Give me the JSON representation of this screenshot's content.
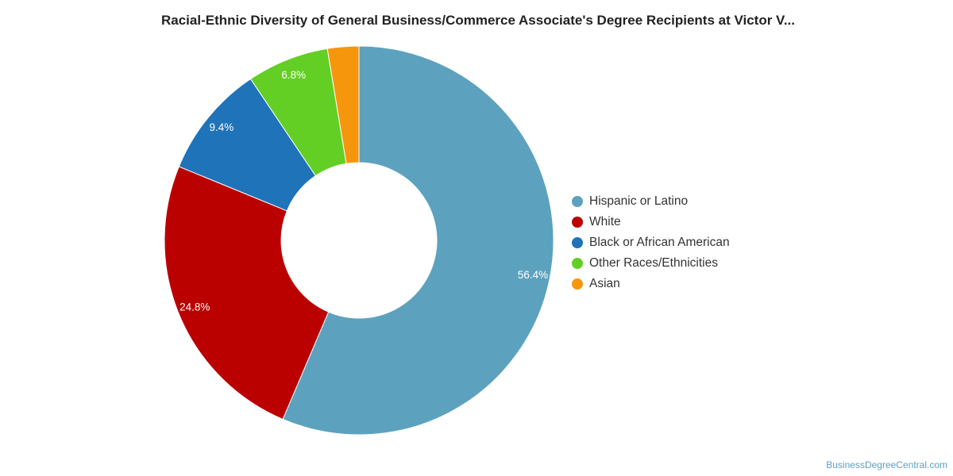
{
  "chart_data": {
    "type": "pie",
    "title": "Racial-Ethnic Diversity of General Business/Commerce Associate's Degree Recipients at Victor V...",
    "donut": true,
    "legend_position": "right",
    "slices": [
      {
        "name": "Hispanic or Latino",
        "value": 56.4,
        "label": "56.4%",
        "color": "#5ca2bf"
      },
      {
        "name": "White",
        "value": 24.8,
        "label": "24.8%",
        "color": "#bb0000"
      },
      {
        "name": "Black or African American",
        "value": 9.4,
        "label": "9.4%",
        "color": "#1f73b9"
      },
      {
        "name": "Other Races/Ethnicities",
        "value": 6.8,
        "label": "6.8%",
        "color": "#63ce24"
      },
      {
        "name": "Asian",
        "value": 2.6,
        "label": "",
        "color": "#f6960d"
      }
    ]
  },
  "source": {
    "label": "BusinessDegreeCentral.com"
  }
}
